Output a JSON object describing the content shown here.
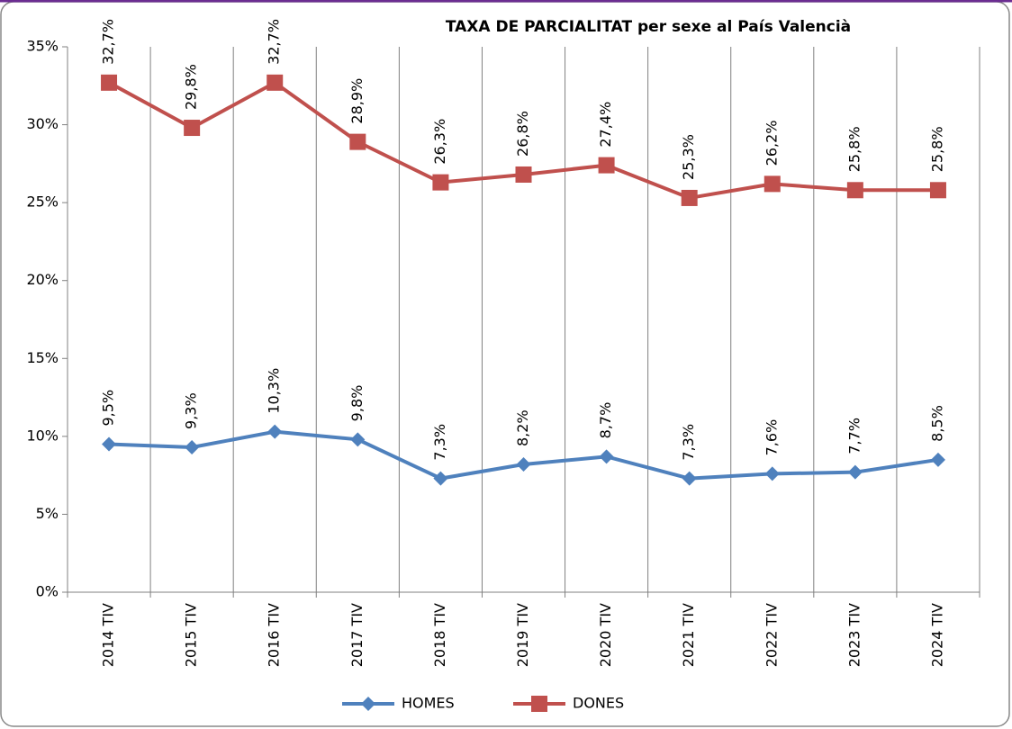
{
  "chart_data": {
    "type": "line",
    "title": "TAXA DE PARCIALITAT per sexe al País Valencià",
    "categories": [
      "2014 TIV",
      "2015 TIV",
      "2016 TIV",
      "2017 TIV",
      "2018 TIV",
      "2019 TIV",
      "2020 TIV",
      "2021 TIV",
      "2022 TIV",
      "2023 TIV",
      "2024 TIV"
    ],
    "series": [
      {
        "name": "HOMES",
        "color": "#4f81bd",
        "marker": "diamond",
        "values": [
          9.5,
          9.3,
          10.3,
          9.8,
          7.3,
          8.2,
          8.7,
          7.3,
          7.6,
          7.7,
          8.5
        ],
        "value_labels": [
          "9,5%",
          "9,3%",
          "10,3%",
          "9,8%",
          "7,3%",
          "8,2%",
          "8,7%",
          "7,3%",
          "7,6%",
          "7,7%",
          "8,5%"
        ]
      },
      {
        "name": "DONES",
        "color": "#c0504d",
        "marker": "square",
        "values": [
          32.7,
          29.8,
          32.7,
          28.9,
          26.3,
          26.8,
          27.4,
          25.3,
          26.2,
          25.8,
          25.8
        ],
        "value_labels": [
          "32,7%",
          "29,8%",
          "32,7%",
          "28,9%",
          "26,3%",
          "26,8%",
          "27,4%",
          "25,3%",
          "26,2%",
          "25,8%",
          "25,8%"
        ]
      }
    ],
    "ylim": [
      0,
      35
    ],
    "yticks": [
      {
        "value": 0,
        "label": "0%"
      },
      {
        "value": 5,
        "label": "5%"
      },
      {
        "value": 10,
        "label": "10%"
      },
      {
        "value": 15,
        "label": "15%"
      },
      {
        "value": 20,
        "label": "20%"
      },
      {
        "value": 25,
        "label": "25%"
      },
      {
        "value": 30,
        "label": "30%"
      },
      {
        "value": 35,
        "label": "35%"
      }
    ],
    "legend": "bottom"
  }
}
